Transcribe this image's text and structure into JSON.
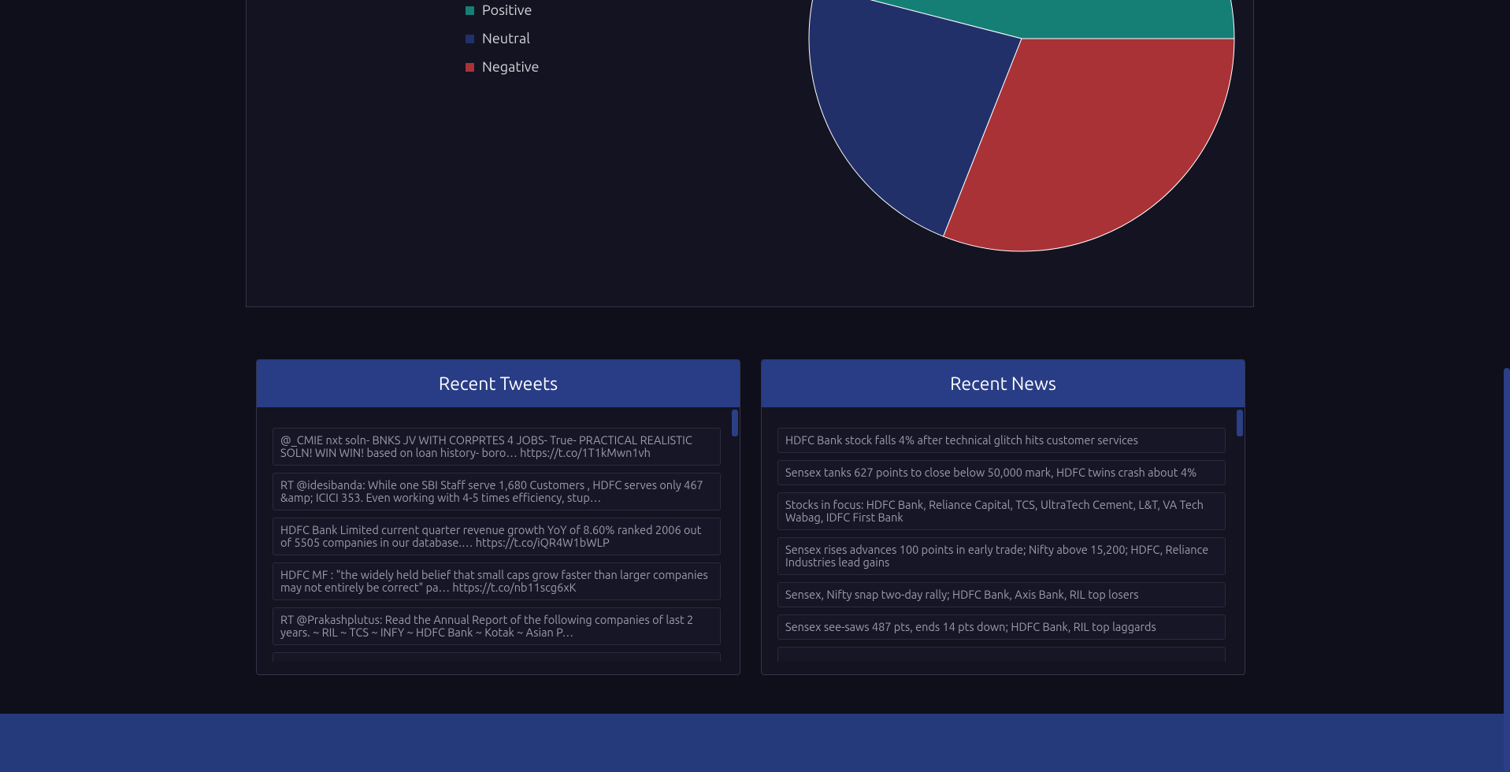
{
  "chart_data": {
    "type": "pie",
    "categories": [
      "Positive",
      "Neutral",
      "Negative"
    ],
    "values": [
      46,
      23,
      31
    ],
    "colors": [
      "#157f76",
      "#22306a",
      "#a93237"
    ]
  },
  "tweets": {
    "title": "Recent Tweets",
    "items": [
      "@_CMIE nxt soln- BNKS JV WITH CORPRTES 4 JOBS- True- PRACTICAL REALISTIC SOLN! WIN WIN! based on loan history- boro… https://t.co/1T1kMwn1vh",
      "RT @idesibanda: While one SBI Staff serve 1,680 Customers , HDFC serves only 467 &amp; ICICI 353. Even working with 4-5 times efficiency, stup…",
      "HDFC Bank Limited current quarter revenue growth YoY of 8.60% ranked 2006 out of 5505 companies in our database.… https://t.co/iQR4W1bWLP",
      "HDFC MF : \"the widely held belief that small caps grow faster than larger companies may not entirely be correct\" pa… https://t.co/nb11scg6xK",
      "RT @Prakashplutus: Read the Annual Report of the following companies of last 2 years. ~ RIL ~ TCS ~ INFY ~ HDFC Bank ~ Kotak ~ Asian P…"
    ]
  },
  "news": {
    "title": "Recent News",
    "items": [
      "HDFC Bank stock falls 4% after technical glitch hits customer services",
      "Sensex tanks 627 points to close below 50,000 mark, HDFC twins crash about 4%",
      "Stocks in focus: HDFC Bank, Reliance Capital, TCS, UltraTech Cement, L&T, VA Tech Wabag, IDFC First Bank",
      "Sensex rises advances 100 points in early trade; Nifty above 15,200; HDFC, Reliance Industries lead gains",
      "Sensex, Nifty snap two-day rally; HDFC Bank, Axis Bank, RIL top losers",
      "Sensex see-saws 487 pts, ends 14 pts down; HDFC Bank, RIL top laggards"
    ]
  }
}
